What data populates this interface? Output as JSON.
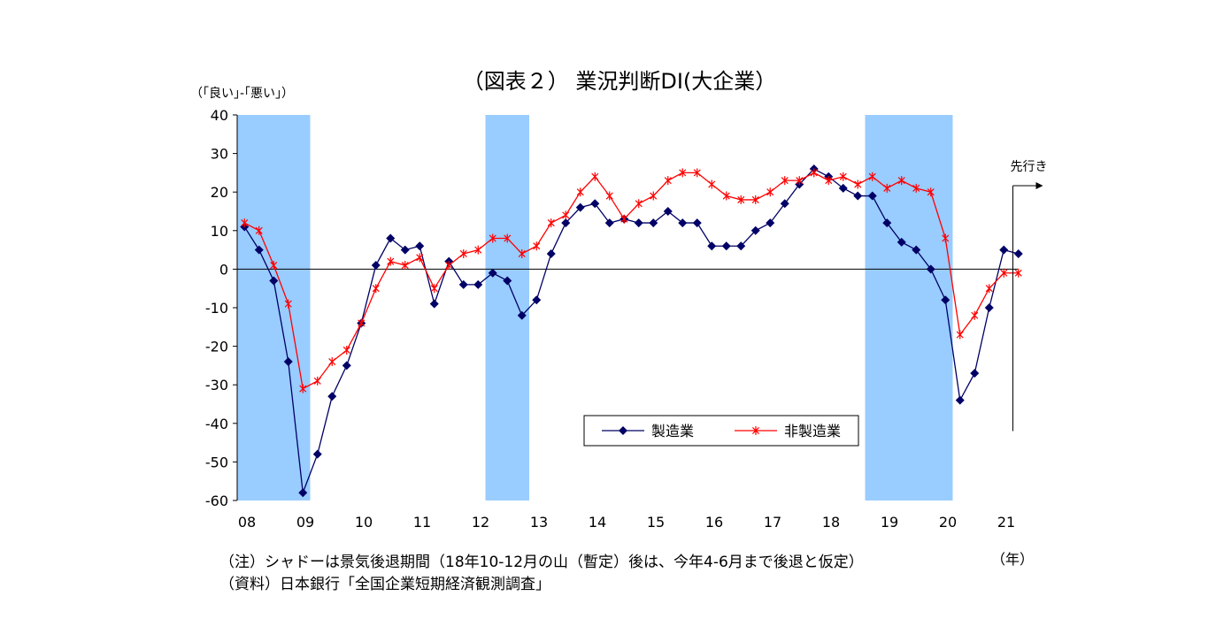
{
  "chart_data": {
    "type": "line",
    "title": "（図表２） 業況判断DI(大企業）",
    "ylabel": "（｢良い｣-｢悪い｣）",
    "xlabel": "（年）",
    "ylim": [
      -60,
      40
    ],
    "yticks": [
      40,
      30,
      20,
      10,
      0,
      -10,
      -20,
      -30,
      -40,
      -50,
      -60
    ],
    "x_start_year": 2008,
    "quarters_per_year": 4,
    "xticks": [
      "08",
      "09",
      "10",
      "11",
      "12",
      "13",
      "14",
      "15",
      "16",
      "17",
      "18",
      "19",
      "20",
      "21"
    ],
    "recession_shading_x": [
      [
        2008.0,
        2009.25
      ],
      [
        2012.25,
        2013.0
      ],
      [
        2018.75,
        2020.25
      ]
    ],
    "forecast_label": "先行き",
    "series": [
      {
        "name": "製造業",
        "color": "#000066",
        "marker": "diamond",
        "values": [
          11,
          5,
          -3,
          -24,
          -58,
          -48,
          -33,
          -25,
          -14,
          1,
          8,
          5,
          6,
          -9,
          2,
          -4,
          -4,
          -1,
          -3,
          -12,
          -8,
          4,
          12,
          16,
          17,
          12,
          13,
          12,
          12,
          15,
          12,
          12,
          6,
          6,
          6,
          10,
          12,
          17,
          22,
          26,
          24,
          21,
          19,
          19,
          12,
          7,
          5,
          0,
          -8,
          -34,
          -27,
          -10,
          5,
          4
        ]
      },
      {
        "name": "非製造業",
        "color": "#ff0000",
        "marker": "asterisk",
        "values": [
          12,
          10,
          1,
          -9,
          -31,
          -29,
          -24,
          -21,
          -14,
          -5,
          2,
          1,
          3,
          -5,
          1,
          4,
          5,
          8,
          8,
          4,
          6,
          12,
          14,
          20,
          24,
          19,
          13,
          17,
          19,
          23,
          25,
          25,
          22,
          19,
          18,
          18,
          20,
          23,
          23,
          25,
          23,
          24,
          22,
          24,
          21,
          23,
          21,
          20,
          8,
          -17,
          -12,
          -5,
          -1,
          -1
        ]
      }
    ]
  },
  "notes": {
    "line1": "（注）シャドーは景気後退期間（18年10-12月の山（暫定）後は、今年4-6月まで後退と仮定）",
    "line2": "（資料）日本銀行「全国企業短期経済観測調査」"
  }
}
